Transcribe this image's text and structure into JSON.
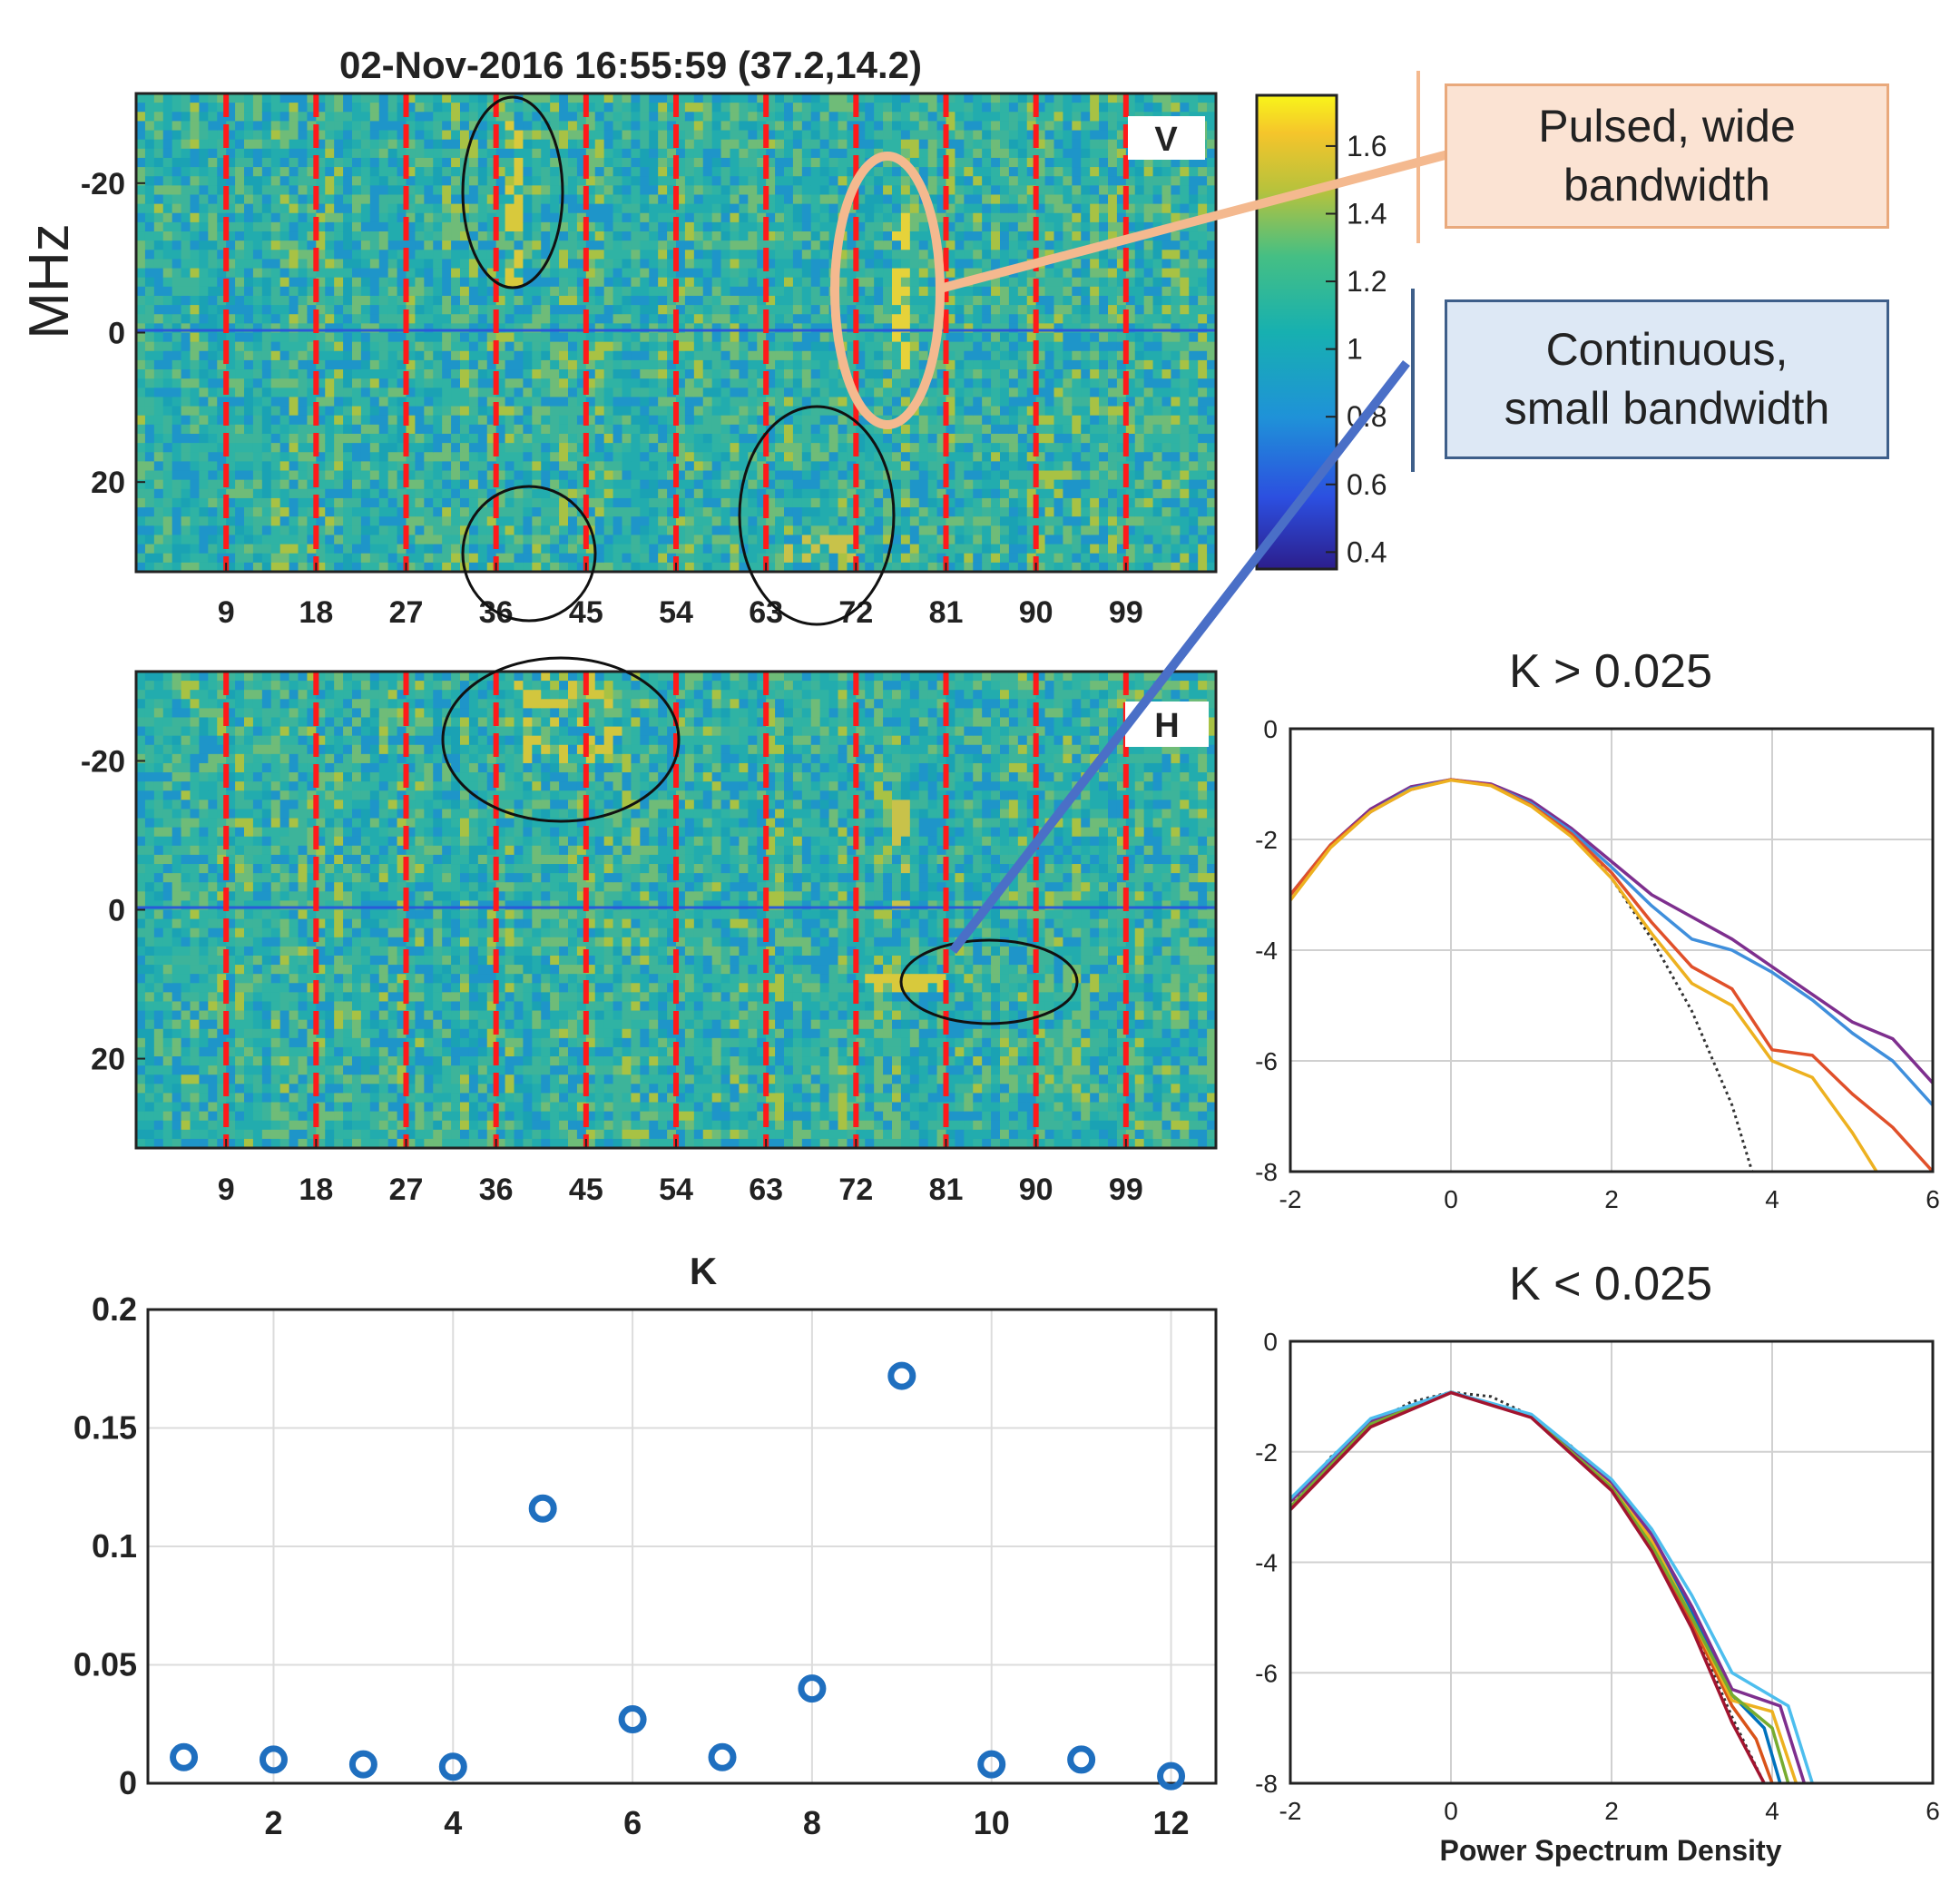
{
  "title": "02-Nov-2016 16:55:59 (37.2,14.2)",
  "spectrogram_ylabel": "MHz",
  "callouts": {
    "pulsed": [
      "Pulsed, wide",
      "bandwidth"
    ],
    "continuous": [
      "Continuous,",
      "small bandwidth"
    ]
  },
  "colors": {
    "accent_pulsed": "#f4b98f",
    "accent_continuous": "#4a6fc7",
    "dashed_lines": "#ff1a1a",
    "markers": "#1f6fbf"
  },
  "chart_data": [
    {
      "type": "heatmap",
      "label": "V",
      "title": "02-Nov-2016 16:55:59 (37.2,14.2)",
      "ylabel": "MHz",
      "x_ticks": [
        9,
        18,
        27,
        36,
        45,
        54,
        63,
        72,
        81,
        90,
        99
      ],
      "y_ticks": [
        -20,
        0,
        20
      ],
      "colorbar": {
        "ticks": [
          0.4,
          0.6,
          0.8,
          1,
          1.2,
          1.4,
          1.6
        ]
      },
      "dashed_lines_x": [
        9,
        18,
        27,
        36,
        45,
        54,
        63,
        72,
        81,
        90,
        99
      ]
    },
    {
      "type": "heatmap",
      "label": "H",
      "x_ticks": [
        9,
        18,
        27,
        36,
        45,
        54,
        63,
        72,
        81,
        90,
        99
      ],
      "y_ticks": [
        -20,
        0,
        20
      ],
      "dashed_lines_x": [
        9,
        18,
        27,
        36,
        45,
        54,
        63,
        72,
        81,
        90,
        99
      ]
    },
    {
      "type": "scatter",
      "title": "K",
      "x": [
        1,
        2,
        3,
        4,
        5,
        6,
        7,
        8,
        9,
        10,
        11,
        12
      ],
      "y": [
        0.011,
        0.01,
        0.008,
        0.007,
        0.116,
        0.027,
        0.011,
        0.04,
        0.172,
        0.008,
        0.01,
        0.003
      ],
      "x_ticks": [
        2,
        4,
        6,
        8,
        10,
        12
      ],
      "y_ticks": [
        0,
        0.05,
        0.1,
        0.15,
        0.2
      ],
      "y_tick_labels": [
        "0",
        "0.05",
        "0.1",
        "0.15",
        "0.2"
      ],
      "xlim": [
        0.6,
        12.5
      ],
      "ylim": [
        0,
        0.2
      ],
      "grid": true
    },
    {
      "type": "line",
      "title": "K > 0.025",
      "xlim": [
        -2,
        6
      ],
      "ylim": [
        -8,
        0
      ],
      "x_ticks": [
        -2,
        0,
        2,
        4,
        6
      ],
      "y_ticks": [
        0,
        -2,
        -4,
        -6,
        -8
      ],
      "grid": true,
      "series": [
        {
          "color": "#333333",
          "dotted": true,
          "x": [
            -2,
            -1.5,
            -1,
            -0.5,
            0,
            0.5,
            1,
            1.5,
            2,
            2.5,
            3,
            3.5,
            3.75
          ],
          "y": [
            -3.0,
            -2.1,
            -1.5,
            -1.1,
            -0.92,
            -1.0,
            -1.35,
            -1.9,
            -2.7,
            -3.8,
            -5.1,
            -6.8,
            -8.0
          ]
        },
        {
          "color": "#7e2f8e",
          "x": [
            -2,
            -1.5,
            -1,
            -0.5,
            0,
            0.5,
            1,
            1.5,
            2,
            2.5,
            3,
            3.5,
            4,
            4.5,
            5,
            5.5,
            6
          ],
          "y": [
            -3.0,
            -2.1,
            -1.45,
            -1.05,
            -0.92,
            -1.0,
            -1.3,
            -1.8,
            -2.4,
            -3.0,
            -3.4,
            -3.8,
            -4.3,
            -4.8,
            -5.3,
            -5.6,
            -6.4
          ]
        },
        {
          "color": "#3f8fdc",
          "x": [
            -2,
            -1.5,
            -1,
            -0.5,
            0,
            0.5,
            1,
            1.5,
            2,
            2.5,
            3,
            3.5,
            4,
            4.5,
            5,
            5.5,
            6
          ],
          "y": [
            -3.0,
            -2.1,
            -1.5,
            -1.08,
            -0.92,
            -1.02,
            -1.35,
            -1.85,
            -2.5,
            -3.2,
            -3.8,
            -4.0,
            -4.4,
            -4.9,
            -5.5,
            -6.0,
            -6.8
          ]
        },
        {
          "color": "#e0502a",
          "x": [
            -2,
            -1.5,
            -1,
            -0.5,
            0,
            0.5,
            1,
            1.5,
            2,
            2.5,
            3,
            3.5,
            4,
            4.5,
            5,
            5.5,
            6
          ],
          "y": [
            -3.0,
            -2.1,
            -1.5,
            -1.1,
            -0.92,
            -1.02,
            -1.38,
            -1.9,
            -2.6,
            -3.5,
            -4.3,
            -4.7,
            -5.8,
            -5.9,
            -6.6,
            -7.2,
            -8.0
          ]
        },
        {
          "color": "#edb120",
          "x": [
            -2,
            -1.5,
            -1,
            -0.5,
            0,
            0.5,
            1,
            1.5,
            2,
            2.5,
            3,
            3.5,
            4,
            4.5,
            5,
            5.3
          ],
          "y": [
            -3.1,
            -2.15,
            -1.5,
            -1.1,
            -0.93,
            -1.03,
            -1.4,
            -1.95,
            -2.7,
            -3.7,
            -4.6,
            -5.0,
            -6.0,
            -6.3,
            -7.3,
            -8.0
          ]
        }
      ]
    },
    {
      "type": "line",
      "title": "K < 0.025",
      "xlabel": "Power Spectrum Density",
      "xlim": [
        -2,
        6
      ],
      "ylim": [
        -8,
        0
      ],
      "x_ticks": [
        -2,
        0,
        2,
        4,
        6
      ],
      "y_ticks": [
        0,
        -2,
        -4,
        -6,
        -8
      ],
      "grid": true,
      "series": [
        {
          "color": "#333333",
          "dotted": true,
          "x": [
            -2,
            -1.5,
            -1,
            -0.5,
            0,
            0.5,
            1,
            1.5,
            2,
            2.5,
            3,
            3.5,
            3.9
          ],
          "y": [
            -3.0,
            -2.1,
            -1.5,
            -1.1,
            -0.92,
            -1.0,
            -1.35,
            -1.9,
            -2.7,
            -3.8,
            -5.1,
            -6.8,
            -8.0
          ]
        },
        {
          "color": "#0072bd",
          "x": [
            -2,
            -1,
            0,
            1,
            2,
            2.5,
            3,
            3.5,
            3.9,
            4.1
          ],
          "y": [
            -2.9,
            -1.5,
            -0.92,
            -1.35,
            -2.6,
            -3.6,
            -4.9,
            -6.4,
            -7.0,
            -8.0
          ]
        },
        {
          "color": "#d95319",
          "x": [
            -2,
            -1,
            0,
            1,
            2,
            2.5,
            3,
            3.5,
            3.8,
            4.0
          ],
          "y": [
            -3.0,
            -1.5,
            -0.92,
            -1.35,
            -2.65,
            -3.7,
            -5.1,
            -6.6,
            -7.2,
            -8.0
          ]
        },
        {
          "color": "#edb120",
          "x": [
            -2,
            -1,
            0,
            1,
            2,
            2.5,
            3,
            3.5,
            4.0,
            4.3
          ],
          "y": [
            -2.9,
            -1.45,
            -0.92,
            -1.35,
            -2.6,
            -3.6,
            -5.0,
            -6.5,
            -6.7,
            -8.0
          ]
        },
        {
          "color": "#7e2f8e",
          "x": [
            -2,
            -1,
            0,
            1,
            2,
            2.5,
            3,
            3.5,
            4.1,
            4.4
          ],
          "y": [
            -2.9,
            -1.45,
            -0.92,
            -1.33,
            -2.55,
            -3.5,
            -4.8,
            -6.3,
            -6.6,
            -8.0
          ]
        },
        {
          "color": "#77ac30",
          "x": [
            -2,
            -1,
            0,
            1,
            2,
            2.5,
            3,
            3.5,
            4.0,
            4.2
          ],
          "y": [
            -3.0,
            -1.5,
            -0.92,
            -1.36,
            -2.65,
            -3.7,
            -5.0,
            -6.4,
            -7.0,
            -8.0
          ]
        },
        {
          "color": "#4dbeee",
          "x": [
            -2,
            -1,
            0,
            1,
            2,
            2.5,
            3,
            3.5,
            4.2,
            4.5
          ],
          "y": [
            -2.85,
            -1.4,
            -0.92,
            -1.32,
            -2.5,
            -3.4,
            -4.6,
            -6.0,
            -6.6,
            -8.0
          ]
        },
        {
          "color": "#a2142f",
          "x": [
            -2,
            -1,
            0,
            1,
            2,
            2.5,
            3,
            3.5,
            3.9
          ],
          "y": [
            -3.05,
            -1.55,
            -0.93,
            -1.38,
            -2.7,
            -3.8,
            -5.2,
            -6.9,
            -8.0
          ]
        }
      ]
    }
  ]
}
